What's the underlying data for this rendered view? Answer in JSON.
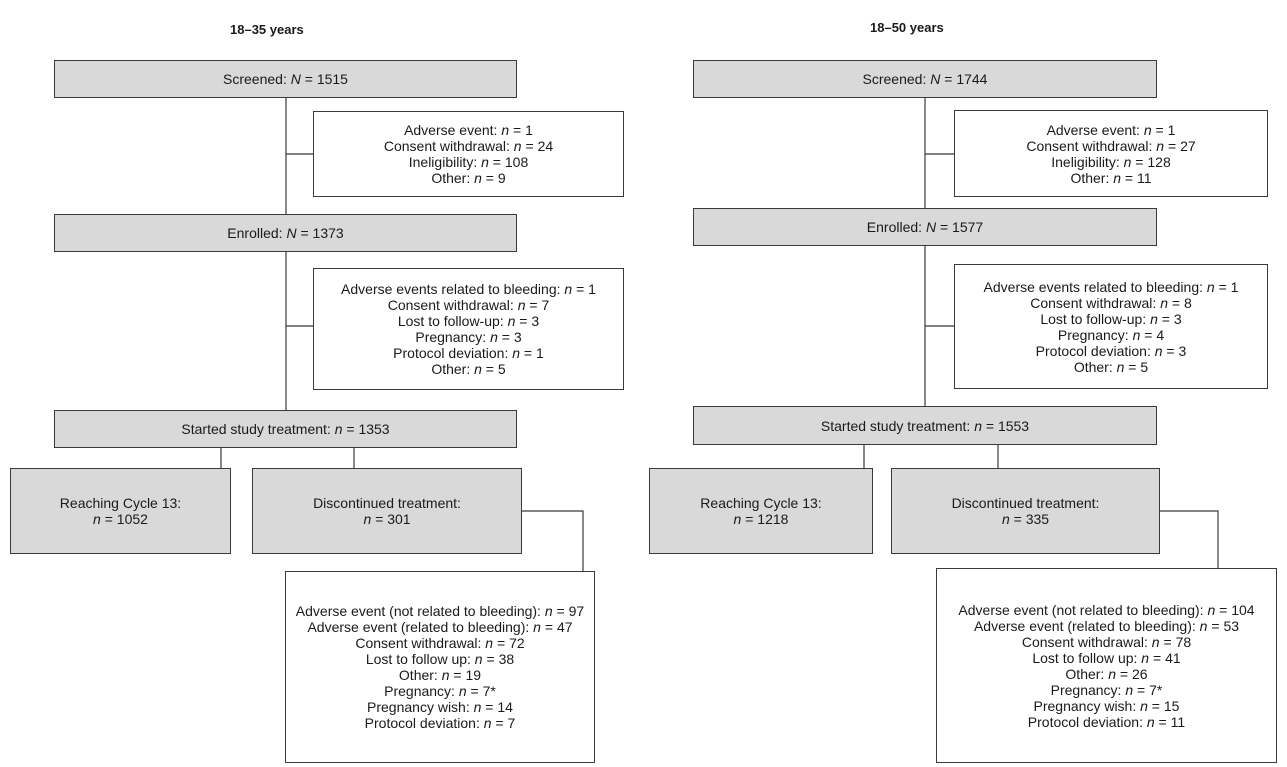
{
  "left": {
    "heading": "18–35 years",
    "screened": {
      "label": "Screened:",
      "var": "N",
      "eq": " = ",
      "value": "1515"
    },
    "screen_exclusions": [
      {
        "label": "Adverse event:",
        "var": "n",
        "eq": " = ",
        "value": "1"
      },
      {
        "label": "Consent withdrawal:",
        "var": "n",
        "eq": " = ",
        "value": "24"
      },
      {
        "label": "Ineligibility:",
        "var": "n",
        "eq": " = ",
        "value": "108"
      },
      {
        "label": "Other:",
        "var": "n",
        "eq": " = ",
        "value": "9"
      }
    ],
    "enrolled": {
      "label": "Enrolled:",
      "var": "N",
      "eq": " = ",
      "value": "1373"
    },
    "enroll_exclusions": [
      {
        "label": "Adverse events related to bleeding:",
        "var": "n",
        "eq": " = ",
        "value": "1"
      },
      {
        "label": "Consent withdrawal:",
        "var": "n",
        "eq": " = ",
        "value": "7"
      },
      {
        "label": "Lost to follow-up:",
        "var": "n",
        "eq": " = ",
        "value": "3"
      },
      {
        "label": "Pregnancy:",
        "var": "n",
        "eq": " = ",
        "value": "3"
      },
      {
        "label": "Protocol deviation:",
        "var": "n",
        "eq": " = ",
        "value": "1"
      },
      {
        "label": "Other:",
        "var": "n",
        "eq": " = ",
        "value": "5"
      }
    ],
    "started": {
      "label": "Started study treatment:",
      "var": "n",
      "eq": " = ",
      "value": "1353"
    },
    "reaching": {
      "title": "Reaching Cycle 13:",
      "var": "n",
      "eq": " = ",
      "value": "1052"
    },
    "discontinued": {
      "title": "Discontinued treatment:",
      "var": "n",
      "eq": " = ",
      "value": "301"
    },
    "discontinue_reasons": [
      {
        "label": "Adverse event (not related to bleeding):",
        "var": "n",
        "eq": " = ",
        "value": "97"
      },
      {
        "label": "Adverse event (related to bleeding):",
        "var": "n",
        "eq": " = ",
        "value": "47"
      },
      {
        "label": "Consent withdrawal:",
        "var": "n",
        "eq": " = ",
        "value": "72"
      },
      {
        "label": "Lost to follow up:",
        "var": "n",
        "eq": " = ",
        "value": "38"
      },
      {
        "label": "Other:",
        "var": "n",
        "eq": " = ",
        "value": "19"
      },
      {
        "label": "Pregnancy:",
        "var": "n",
        "eq": " = ",
        "value": "7*"
      },
      {
        "label": "Pregnancy wish:",
        "var": "n",
        "eq": " = ",
        "value": "14"
      },
      {
        "label": "Protocol deviation:",
        "var": "n",
        "eq": " = ",
        "value": "7"
      }
    ]
  },
  "right": {
    "heading": "18–50 years",
    "screened": {
      "label": "Screened:",
      "var": "N",
      "eq": " = ",
      "value": "1744"
    },
    "screen_exclusions": [
      {
        "label": "Adverse event:",
        "var": "n",
        "eq": " = ",
        "value": "1"
      },
      {
        "label": "Consent withdrawal:",
        "var": "n",
        "eq": " = ",
        "value": "27"
      },
      {
        "label": "Ineligibility:",
        "var": "n",
        "eq": " = ",
        "value": "128"
      },
      {
        "label": "Other:",
        "var": "n",
        "eq": " = ",
        "value": "11"
      }
    ],
    "enrolled": {
      "label": "Enrolled:",
      "var": "N",
      "eq": " = ",
      "value": "1577"
    },
    "enroll_exclusions": [
      {
        "label": "Adverse events related to bleeding:",
        "var": "n",
        "eq": " = ",
        "value": "1"
      },
      {
        "label": "Consent withdrawal:",
        "var": "n",
        "eq": " = ",
        "value": "8"
      },
      {
        "label": "Lost to follow-up:",
        "var": "n",
        "eq": " = ",
        "value": "3"
      },
      {
        "label": "Pregnancy:",
        "var": "n",
        "eq": " = ",
        "value": "4"
      },
      {
        "label": "Protocol deviation:",
        "var": "n",
        "eq": " = ",
        "value": "3"
      },
      {
        "label": "Other:",
        "var": "n",
        "eq": " = ",
        "value": "5"
      }
    ],
    "started": {
      "label": "Started study treatment:",
      "var": "n",
      "eq": " = ",
      "value": "1553"
    },
    "reaching": {
      "title": "Reaching Cycle 13:",
      "var": "n",
      "eq": " = ",
      "value": "1218"
    },
    "discontinued": {
      "title": "Discontinued treatment:",
      "var": "n",
      "eq": " = ",
      "value": "335"
    },
    "discontinue_reasons": [
      {
        "label": "Adverse event (not related to bleeding):",
        "var": "n",
        "eq": " = ",
        "value": "104"
      },
      {
        "label": "Adverse event (related to bleeding):",
        "var": "n",
        "eq": " = ",
        "value": "53"
      },
      {
        "label": "Consent withdrawal:",
        "var": "n",
        "eq": " = ",
        "value": "78"
      },
      {
        "label": "Lost to follow up:",
        "var": "n",
        "eq": " = ",
        "value": "41"
      },
      {
        "label": "Other:",
        "var": "n",
        "eq": " = ",
        "value": "26"
      },
      {
        "label": "Pregnancy:",
        "var": "n",
        "eq": " = ",
        "value": "7*"
      },
      {
        "label": "Pregnancy wish:",
        "var": "n",
        "eq": " = ",
        "value": "15"
      },
      {
        "label": "Protocol deviation:",
        "var": "n",
        "eq": " = ",
        "value": "11"
      }
    ]
  }
}
